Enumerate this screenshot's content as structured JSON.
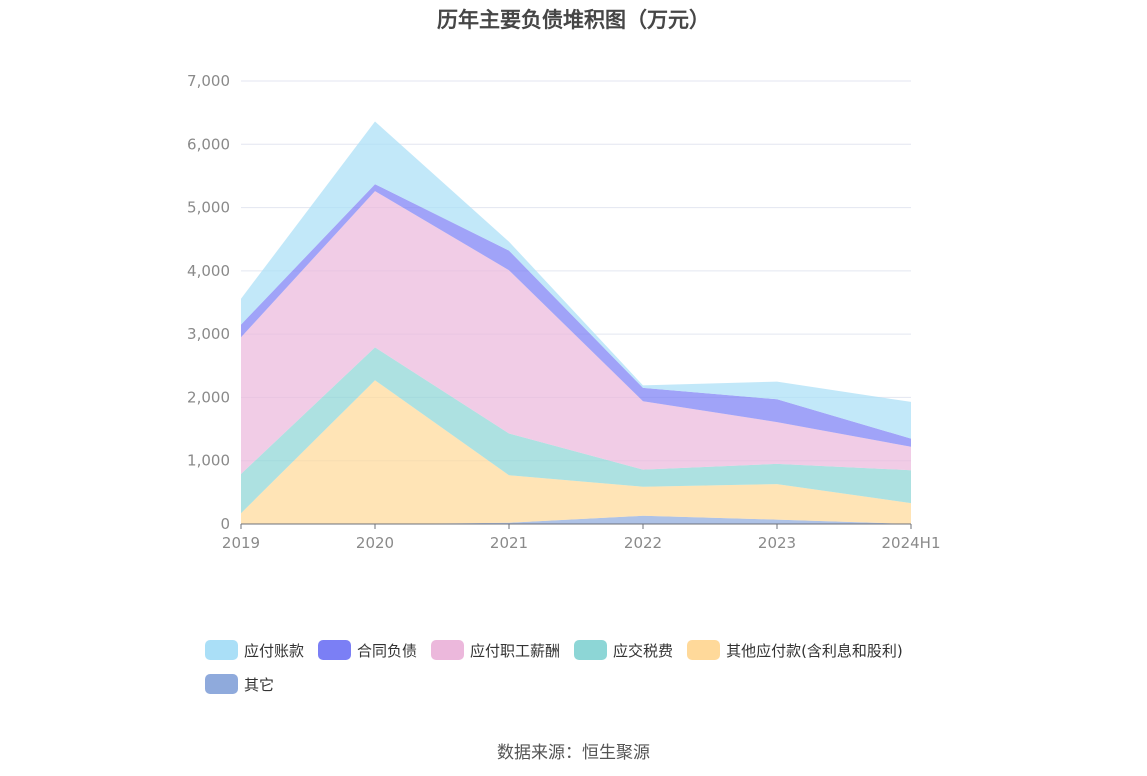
{
  "title": "历年主要负债堆积图（万元）",
  "source": "数据来源：恒生聚源",
  "chart_data": {
    "type": "area",
    "stacked": true,
    "title": "历年主要负债堆积图（万元）",
    "categories": [
      "2019",
      "2020",
      "2021",
      "2022",
      "2023",
      "2024H1"
    ],
    "ylim": [
      0,
      7000
    ],
    "yticks": [
      "0",
      "1,000",
      "2,000",
      "3,000",
      "4,000",
      "5,000",
      "6,000",
      "7,000"
    ],
    "grid": true,
    "legend_position": "bottom",
    "series": [
      {
        "name": "其它",
        "color": "#8faadc",
        "values": [
          0,
          0,
          20,
          130,
          70,
          0
        ]
      },
      {
        "name": "其他应付款(含利息和股利)",
        "color": "#ffd99a",
        "values": [
          170,
          2270,
          750,
          460,
          560,
          330
        ]
      },
      {
        "name": "应交税费",
        "color": "#8dd6d6",
        "values": [
          620,
          520,
          660,
          270,
          320,
          520
        ]
      },
      {
        "name": "应付职工薪酬",
        "color": "#ecb8dc",
        "values": [
          2160,
          2470,
          2580,
          1080,
          660,
          370
        ]
      },
      {
        "name": "合同负债",
        "color": "#7b7ff5",
        "values": [
          200,
          110,
          310,
          210,
          360,
          130
        ]
      },
      {
        "name": "应付账款",
        "color": "#aadff7",
        "values": [
          410,
          990,
          140,
          40,
          280,
          580
        ]
      }
    ],
    "legend_order": [
      "应付账款",
      "合同负债",
      "应付职工薪酬",
      "应交税费",
      "其他应付款(含利息和股利)",
      "其它"
    ]
  }
}
